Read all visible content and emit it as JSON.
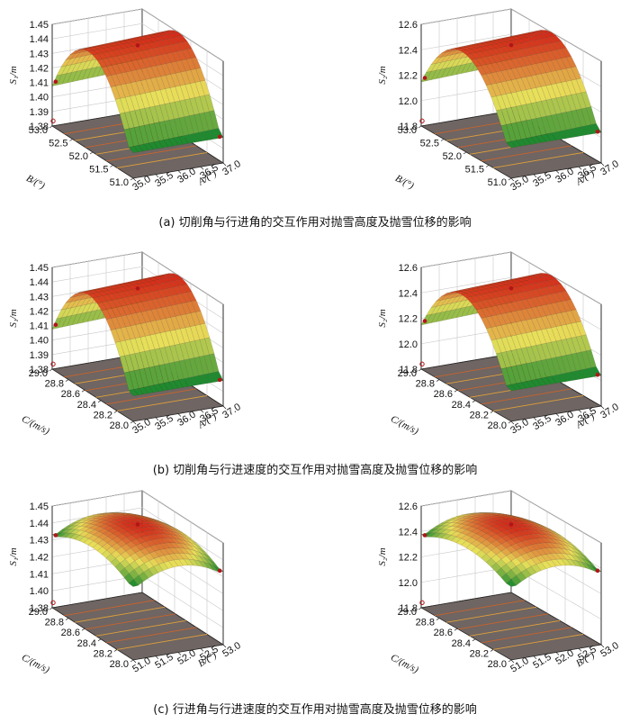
{
  "colors": {
    "floor": "#6f6562",
    "contour_orange": "#e0a03a",
    "contour_red": "#c8642c",
    "surface_low": "#1f8a2f",
    "surface_mid": "#e8e05a",
    "surface_high": "#d42a18",
    "marker": "#b0151a"
  },
  "captions": [
    "(a)  切削角与行进角的交互作用对抛雪高度及抛雪位移的影响",
    "(b)  切削角与行进速度的交互作用对抛雪高度及抛雪位移的影响",
    "(c)  行进角与行进速度的交互作用对抛雪高度及抛雪位移的影响"
  ],
  "chart_data": [
    {
      "type": "surface",
      "panel": "a-left",
      "zlabel": "S₁/m",
      "xlabel": "A/(°)",
      "ylabel": "B/(°)",
      "zticks": [
        "1.38",
        "1.39",
        "1.40",
        "1.41",
        "1.42",
        "1.43",
        "1.44",
        "1.45"
      ],
      "xticks": [
        "35.0",
        "35.5",
        "36.0",
        "36.5",
        "37.0"
      ],
      "yticks": [
        "51.0",
        "51.5",
        "52.0",
        "52.5",
        "53.0"
      ],
      "zlim": [
        1.38,
        1.45
      ],
      "x": [
        35.0,
        35.5,
        36.0,
        36.5,
        37.0
      ],
      "y": [
        51.0,
        51.5,
        52.0,
        52.5,
        53.0
      ],
      "z_summary": {
        "corner_low_A": 1.4,
        "ridge_peak": 1.445,
        "corner_high_A": 1.392
      }
    },
    {
      "type": "surface",
      "panel": "a-right",
      "zlabel": "S₂/m",
      "xlabel": "A/(°)",
      "ylabel": "B/(°)",
      "zticks": [
        "11.8",
        "12.0",
        "12.2",
        "12.4",
        "12.6"
      ],
      "xticks": [
        "35.0",
        "35.5",
        "36.0",
        "36.5",
        "37.0"
      ],
      "yticks": [
        "51.0",
        "51.5",
        "52.0",
        "52.5",
        "53.0"
      ],
      "zlim": [
        11.8,
        12.6
      ],
      "z_summary": {
        "corner_low_A": 12.05,
        "ridge_peak": 12.58,
        "corner_high_A": 11.98
      }
    },
    {
      "type": "surface",
      "panel": "b-left",
      "zlabel": "S₁/m",
      "xlabel": "A/(°)",
      "ylabel": "C/(m/s)",
      "zticks": [
        "1.38",
        "1.39",
        "1.40",
        "1.41",
        "1.42",
        "1.43",
        "1.44",
        "1.45"
      ],
      "xticks": [
        "35.0",
        "35.5",
        "36.0",
        "36.5",
        "37.0"
      ],
      "yticks": [
        "28.0",
        "28.2",
        "28.4",
        "28.6",
        "28.8",
        "29.0"
      ],
      "zlim": [
        1.38,
        1.45
      ],
      "z_summary": {
        "corner_low_A": 1.4,
        "ridge_peak": 1.445,
        "corner_high_A": 1.39
      }
    },
    {
      "type": "surface",
      "panel": "b-right",
      "zlabel": "S₂/m",
      "xlabel": "A/(°)",
      "ylabel": "C/(m/s)",
      "zticks": [
        "11.8",
        "12.0",
        "12.2",
        "12.4",
        "12.6"
      ],
      "xticks": [
        "35.0",
        "35.5",
        "36.0",
        "36.5",
        "37.0"
      ],
      "yticks": [
        "28.0",
        "28.2",
        "28.4",
        "28.6",
        "28.8",
        "29.0"
      ],
      "zlim": [
        11.8,
        12.6
      ],
      "z_summary": {
        "corner_low_A": 12.05,
        "ridge_peak": 12.58,
        "corner_high_A": 11.95
      }
    },
    {
      "type": "surface",
      "panel": "c-left",
      "zlabel": "S₁/m",
      "xlabel": "B/(°)",
      "ylabel": "C/(m/s)",
      "zticks": [
        "1.38",
        "1.40",
        "1.41",
        "1.42",
        "1.43",
        "1.44",
        "1.45"
      ],
      "xticks": [
        "51.0",
        "51.5",
        "52.0",
        "52.5",
        "53.0"
      ],
      "yticks": [
        "28.0",
        "28.2",
        "28.4",
        "28.6",
        "28.8",
        "29.0"
      ],
      "zlim": [
        1.38,
        1.45
      ],
      "z_summary": {
        "corner_low_B": 1.432,
        "center_peak": 1.45,
        "corner_high_B": 1.435
      }
    },
    {
      "type": "surface",
      "panel": "c-right",
      "zlabel": "S₂/m",
      "xlabel": "B/(°)",
      "ylabel": "C/(m/s)",
      "zticks": [
        "11.8",
        "12.0",
        "12.2",
        "12.4",
        "12.6"
      ],
      "xticks": [
        "51.0",
        "51.5",
        "52.0",
        "52.5",
        "53.0"
      ],
      "yticks": [
        "28.0",
        "28.2",
        "28.4",
        "28.6",
        "28.8",
        "29.0"
      ],
      "zlim": [
        11.8,
        12.6
      ],
      "z_summary": {
        "corner_low_B": 12.38,
        "center_peak": 12.6,
        "corner_high_B": 12.42
      }
    }
  ]
}
